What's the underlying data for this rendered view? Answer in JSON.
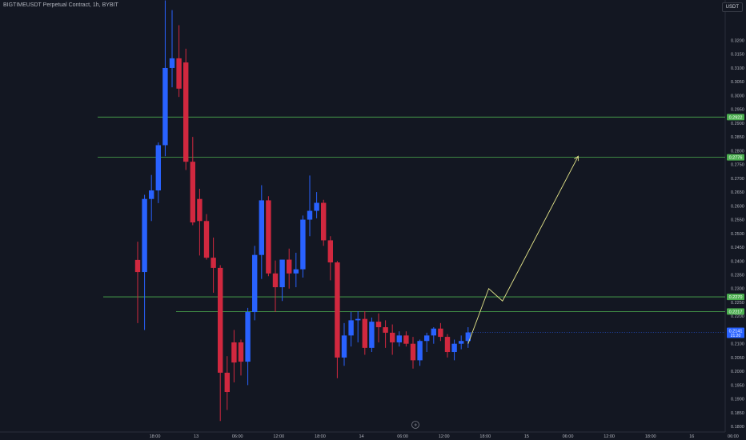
{
  "header": {
    "title": "BIGTIMEUSDT Perpetual Contract, 1h, BYBIT",
    "currency": "USDT"
  },
  "colors": {
    "background": "#131722",
    "up": "#2962ff",
    "down": "#d1283f",
    "level_line": "#4caf50",
    "projection": "#e4e58a",
    "axis_text": "#b2b5be",
    "price_badge": "#2962ff"
  },
  "chart_data": {
    "type": "candlestick",
    "title": "",
    "ylim": [
      0.178,
      0.3345
    ],
    "y_ticks": [
      "0.3200",
      "0.3150",
      "0.3100",
      "0.3050",
      "0.3000",
      "0.2950",
      "0.2900",
      "0.2850",
      "0.2800",
      "0.2750",
      "0.2700",
      "0.2650",
      "0.2600",
      "0.2550",
      "0.2500",
      "0.2450",
      "0.2400",
      "0.2350",
      "0.2300",
      "0.2250",
      "0.2200",
      "0.2150",
      "0.2100",
      "0.2050",
      "0.2000",
      "0.1950",
      "0.1900",
      "0.1850",
      "0.1800"
    ],
    "x_labels": [
      "18:00",
      "13",
      "06:00",
      "12:00",
      "18:00",
      "14",
      "06:00",
      "12:00",
      "18:00",
      "15",
      "06:00",
      "12:00",
      "18:00",
      "16",
      "06:00",
      "12:00",
      "18:00",
      "17"
    ],
    "candles": [
      {
        "o": 0.2404,
        "h": 0.247,
        "l": 0.2175,
        "c": 0.236
      },
      {
        "o": 0.236,
        "h": 0.264,
        "l": 0.215,
        "c": 0.2625
      },
      {
        "o": 0.2625,
        "h": 0.2712,
        "l": 0.2545,
        "c": 0.2656
      },
      {
        "o": 0.2656,
        "h": 0.283,
        "l": 0.261,
        "c": 0.282
      },
      {
        "o": 0.282,
        "h": 0.3345,
        "l": 0.278,
        "c": 0.31
      },
      {
        "o": 0.31,
        "h": 0.331,
        "l": 0.303,
        "c": 0.3135
      },
      {
        "o": 0.3135,
        "h": 0.3255,
        "l": 0.2995,
        "c": 0.3025
      },
      {
        "o": 0.312,
        "h": 0.317,
        "l": 0.273,
        "c": 0.276
      },
      {
        "o": 0.276,
        "h": 0.285,
        "l": 0.253,
        "c": 0.254
      },
      {
        "o": 0.2625,
        "h": 0.2662,
        "l": 0.242,
        "c": 0.2545
      },
      {
        "o": 0.2545,
        "h": 0.257,
        "l": 0.2405,
        "c": 0.2412
      },
      {
        "o": 0.2412,
        "h": 0.2485,
        "l": 0.2285,
        "c": 0.2375
      },
      {
        "o": 0.2375,
        "h": 0.2385,
        "l": 0.182,
        "c": 0.1995
      },
      {
        "o": 0.1995,
        "h": 0.2055,
        "l": 0.186,
        "c": 0.1925
      },
      {
        "o": 0.2105,
        "h": 0.215,
        "l": 0.196,
        "c": 0.2032
      },
      {
        "o": 0.2105,
        "h": 0.2115,
        "l": 0.1985,
        "c": 0.2035
      },
      {
        "o": 0.2035,
        "h": 0.223,
        "l": 0.195,
        "c": 0.2215
      },
      {
        "o": 0.2215,
        "h": 0.2455,
        "l": 0.2185,
        "c": 0.2422
      },
      {
        "o": 0.2422,
        "h": 0.2675,
        "l": 0.2335,
        "c": 0.262
      },
      {
        "o": 0.262,
        "h": 0.2635,
        "l": 0.2345,
        "c": 0.2355
      },
      {
        "o": 0.2355,
        "h": 0.2402,
        "l": 0.2215,
        "c": 0.2305
      },
      {
        "o": 0.2305,
        "h": 0.24,
        "l": 0.2255,
        "c": 0.2405
      },
      {
        "o": 0.2405,
        "h": 0.2445,
        "l": 0.23,
        "c": 0.2355
      },
      {
        "o": 0.2355,
        "h": 0.243,
        "l": 0.2305,
        "c": 0.237
      },
      {
        "o": 0.237,
        "h": 0.2565,
        "l": 0.234,
        "c": 0.255
      },
      {
        "o": 0.255,
        "h": 0.271,
        "l": 0.249,
        "c": 0.2582
      },
      {
        "o": 0.2582,
        "h": 0.265,
        "l": 0.2555,
        "c": 0.2611
      },
      {
        "o": 0.2611,
        "h": 0.2622,
        "l": 0.2455,
        "c": 0.2475
      },
      {
        "o": 0.2475,
        "h": 0.249,
        "l": 0.233,
        "c": 0.2395
      },
      {
        "o": 0.2395,
        "h": 0.24,
        "l": 0.1975,
        "c": 0.205
      },
      {
        "o": 0.205,
        "h": 0.2175,
        "l": 0.202,
        "c": 0.213
      },
      {
        "o": 0.213,
        "h": 0.2215,
        "l": 0.209,
        "c": 0.2185
      },
      {
        "o": 0.2185,
        "h": 0.2218,
        "l": 0.2105,
        "c": 0.219
      },
      {
        "o": 0.219,
        "h": 0.2218,
        "l": 0.206,
        "c": 0.2085
      },
      {
        "o": 0.2085,
        "h": 0.2195,
        "l": 0.207,
        "c": 0.218
      },
      {
        "o": 0.218,
        "h": 0.221,
        "l": 0.2105,
        "c": 0.216
      },
      {
        "o": 0.216,
        "h": 0.2185,
        "l": 0.2085,
        "c": 0.214
      },
      {
        "o": 0.214,
        "h": 0.217,
        "l": 0.206,
        "c": 0.2105
      },
      {
        "o": 0.2105,
        "h": 0.2145,
        "l": 0.209,
        "c": 0.213
      },
      {
        "o": 0.213,
        "h": 0.2145,
        "l": 0.209,
        "c": 0.21
      },
      {
        "o": 0.21,
        "h": 0.2125,
        "l": 0.201,
        "c": 0.204
      },
      {
        "o": 0.204,
        "h": 0.2115,
        "l": 0.202,
        "c": 0.211
      },
      {
        "o": 0.211,
        "h": 0.214,
        "l": 0.207,
        "c": 0.213
      },
      {
        "o": 0.213,
        "h": 0.216,
        "l": 0.21,
        "c": 0.2155
      },
      {
        "o": 0.2155,
        "h": 0.2175,
        "l": 0.211,
        "c": 0.2125
      },
      {
        "o": 0.2125,
        "h": 0.2135,
        "l": 0.205,
        "c": 0.207
      },
      {
        "o": 0.207,
        "h": 0.2115,
        "l": 0.204,
        "c": 0.21
      },
      {
        "o": 0.21,
        "h": 0.213,
        "l": 0.208,
        "c": 0.211
      },
      {
        "o": 0.211,
        "h": 0.216,
        "l": 0.2085,
        "c": 0.2141
      }
    ],
    "levels": [
      {
        "price": 0.2922,
        "label": "0.2922"
      },
      {
        "price": 0.2776,
        "label": "0.2776"
      },
      {
        "price": 0.227,
        "label": "0.2270"
      },
      {
        "price": 0.2217,
        "label": "0.2217"
      }
    ],
    "current_price": {
      "price": 0.2141,
      "label": "0.2141",
      "countdown": "21:20"
    },
    "projection": [
      {
        "candle": 48,
        "price": 0.21
      },
      {
        "candle": 51,
        "price": 0.23
      },
      {
        "candle": 53,
        "price": 0.2255
      },
      {
        "candle": 64,
        "price": 0.278
      }
    ]
  }
}
